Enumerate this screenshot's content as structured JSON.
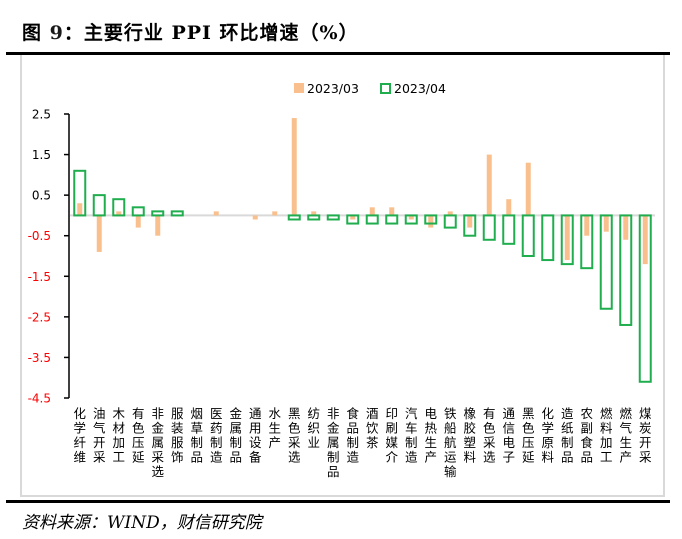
{
  "figure": {
    "title_prefix": "图 ",
    "title_number": "9",
    "title_rest": "：主要行业 PPI 环比增速（%）",
    "source": "资料来源：WIND，财信研究院"
  },
  "colors": {
    "series_2023_03": "#f9c08e",
    "series_2023_04": "#1fad4e",
    "negative_tick_label": "#ff0000",
    "positive_tick_label": "#000000",
    "zero_line": "#d9d9d9",
    "axis": "#000000"
  },
  "chart_data": {
    "type": "bar",
    "title": "主要行业 PPI 环比增速（%）",
    "xlabel": "",
    "ylabel": "",
    "ylim": [
      -4.5,
      2.5
    ],
    "yticks": [
      2.5,
      1.5,
      0.5,
      -0.5,
      -1.5,
      -2.5,
      -3.5,
      -4.5
    ],
    "ytick_labels": [
      "2.5",
      "1.5",
      "0.5",
      "-0.5",
      "-1.5",
      "-2.5",
      "-3.5",
      "-4.5"
    ],
    "grid": false,
    "legend_position": "top-right",
    "categories": [
      "化学纤维",
      "油气开采",
      "木材加工",
      "有色压延",
      "非金属采选",
      "服装服饰",
      "烟草制品",
      "医药制造",
      "金属制品",
      "通用设备",
      "水生产",
      "黑色采选",
      "纺织业",
      "非金属制品",
      "食品制造",
      "酒饮茶",
      "印刷媒介",
      "汽车制造",
      "电热生产",
      "铁船航运输",
      "橡胶塑料",
      "有色采选",
      "通信电子",
      "黑色压延",
      "化学原料",
      "造纸制品",
      "农副食品",
      "燃料加工",
      "燃气生产",
      "煤炭开采"
    ],
    "series": [
      {
        "name": "2023/03",
        "style": "filled",
        "values": [
          0.3,
          -0.9,
          0.1,
          -0.3,
          -0.5,
          0.0,
          0.0,
          0.1,
          0.0,
          -0.1,
          0.1,
          2.4,
          0.1,
          0.0,
          -0.1,
          0.2,
          0.2,
          -0.1,
          -0.3,
          0.1,
          -0.3,
          1.5,
          0.4,
          1.3,
          0.0,
          -1.1,
          -0.5,
          -0.4,
          -0.6,
          -1.2
        ]
      },
      {
        "name": "2023/04",
        "style": "outline",
        "values": [
          1.1,
          0.5,
          0.4,
          0.2,
          0.1,
          0.1,
          0.0,
          0.0,
          0.0,
          0.0,
          0.0,
          -0.1,
          -0.1,
          -0.1,
          -0.2,
          -0.2,
          -0.2,
          -0.2,
          -0.2,
          -0.3,
          -0.5,
          -0.6,
          -0.7,
          -1.0,
          -1.1,
          -1.2,
          -1.3,
          -2.3,
          -2.7,
          -4.1
        ]
      }
    ]
  }
}
